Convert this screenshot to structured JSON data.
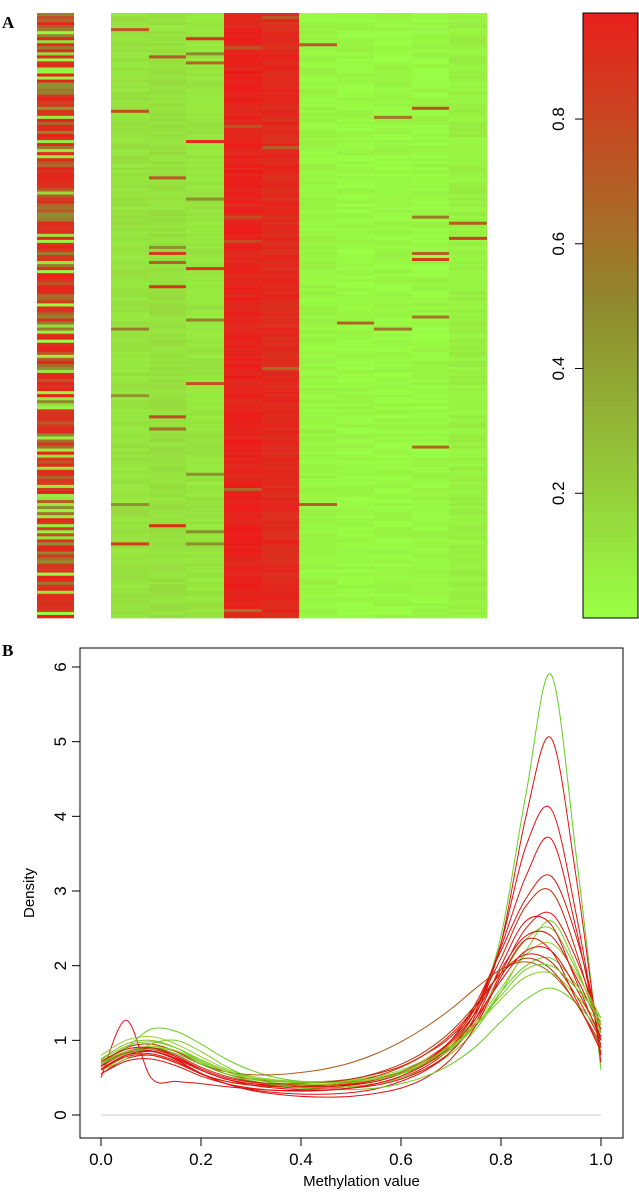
{
  "colors": {
    "low": "#99ff44",
    "mid": "#8f8a2e",
    "high": "#ee1a1a",
    "axis": "#000000",
    "baseline": "#cccccc"
  },
  "chart_data": [
    {
      "panel": "A",
      "type": "heatmap",
      "columns": 11,
      "rows": 200,
      "description_values": "methylation values per probe (rows) and sample (columns)",
      "column_means": [
        0.62,
        0.12,
        0.13,
        0.11,
        0.96,
        0.93,
        0.04,
        0.03,
        0.03,
        0.03,
        0.06
      ],
      "colorbar": {
        "range": [
          0.0,
          0.97
        ],
        "ticks": [
          0.2,
          0.4,
          0.6,
          0.8
        ],
        "tick_labels": [
          "0.2",
          "0.4",
          "0.6",
          "0.8"
        ]
      }
    },
    {
      "panel": "B",
      "type": "line",
      "xlabel": "Methylation value",
      "ylabel": "Density",
      "xlim": [
        0.0,
        1.0
      ],
      "ylim": [
        0,
        6
      ],
      "x_ticks": [
        0.0,
        0.2,
        0.4,
        0.6,
        0.8,
        1.0
      ],
      "x_tick_labels": [
        "0.0",
        "0.2",
        "0.4",
        "0.6",
        "0.8",
        "1.0"
      ],
      "y_ticks": [
        0,
        1,
        2,
        3,
        4,
        5,
        6
      ],
      "y_tick_labels": [
        "0",
        "1",
        "2",
        "3",
        "4",
        "5",
        "6"
      ],
      "x": [
        0.0,
        0.05,
        0.1,
        0.15,
        0.2,
        0.25,
        0.3,
        0.35,
        0.4,
        0.45,
        0.5,
        0.55,
        0.6,
        0.65,
        0.7,
        0.75,
        0.8,
        0.85,
        0.9,
        0.95,
        1.0
      ],
      "series": [
        {
          "color": "#66cc22",
          "values": [
            0.7,
            0.85,
            0.9,
            0.85,
            0.7,
            0.55,
            0.45,
            0.4,
            0.38,
            0.38,
            0.4,
            0.45,
            0.55,
            0.7,
            0.95,
            1.4,
            2.4,
            4.3,
            5.9,
            3.5,
            0.6
          ]
        },
        {
          "color": "#dd1111",
          "values": [
            0.55,
            0.75,
            0.8,
            0.7,
            0.55,
            0.45,
            0.4,
            0.38,
            0.36,
            0.36,
            0.38,
            0.42,
            0.5,
            0.65,
            0.9,
            1.35,
            2.3,
            4.0,
            5.05,
            3.2,
            0.7
          ]
        },
        {
          "color": "#dd1111",
          "values": [
            0.6,
            0.8,
            0.85,
            0.75,
            0.6,
            0.48,
            0.42,
            0.4,
            0.38,
            0.38,
            0.4,
            0.45,
            0.55,
            0.7,
            0.95,
            1.4,
            2.3,
            3.6,
            4.1,
            2.7,
            0.8
          ]
        },
        {
          "color": "#dd1111",
          "values": [
            0.65,
            0.85,
            0.88,
            0.78,
            0.62,
            0.5,
            0.44,
            0.41,
            0.4,
            0.4,
            0.42,
            0.48,
            0.58,
            0.75,
            1.0,
            1.45,
            2.25,
            3.2,
            3.7,
            2.5,
            0.9
          ]
        },
        {
          "color": "#dd1111",
          "values": [
            0.5,
            1.27,
            0.5,
            0.45,
            0.42,
            0.38,
            0.35,
            0.33,
            0.33,
            0.34,
            0.36,
            0.42,
            0.52,
            0.7,
            1.0,
            1.5,
            2.2,
            2.9,
            3.2,
            2.4,
            1.1
          ]
        },
        {
          "color": "#cc2200",
          "values": [
            0.7,
            0.9,
            0.95,
            0.85,
            0.68,
            0.55,
            0.48,
            0.45,
            0.44,
            0.45,
            0.48,
            0.55,
            0.65,
            0.82,
            1.05,
            1.45,
            2.1,
            2.8,
            3.0,
            2.2,
            1.0
          ]
        },
        {
          "color": "#77cc22",
          "values": [
            0.6,
            0.75,
            0.95,
            1.0,
            0.85,
            0.65,
            0.5,
            0.42,
            0.38,
            0.37,
            0.38,
            0.42,
            0.5,
            0.62,
            0.82,
            1.15,
            1.65,
            2.2,
            2.6,
            2.0,
            1.1
          ]
        },
        {
          "color": "#dd1111",
          "values": [
            0.7,
            0.88,
            0.9,
            0.78,
            0.6,
            0.48,
            0.4,
            0.36,
            0.34,
            0.34,
            0.36,
            0.4,
            0.48,
            0.62,
            0.85,
            1.25,
            1.9,
            2.5,
            2.7,
            2.1,
            1.2
          ]
        },
        {
          "color": "#88bb22",
          "values": [
            0.75,
            0.95,
            1.0,
            0.9,
            0.72,
            0.58,
            0.5,
            0.46,
            0.44,
            0.44,
            0.46,
            0.5,
            0.58,
            0.72,
            0.95,
            1.3,
            1.85,
            2.35,
            2.5,
            1.95,
            1.2
          ]
        },
        {
          "color": "#dd1111",
          "values": [
            0.62,
            0.8,
            0.82,
            0.72,
            0.55,
            0.42,
            0.34,
            0.3,
            0.28,
            0.28,
            0.3,
            0.35,
            0.45,
            0.6,
            0.85,
            1.3,
            2.0,
            2.6,
            2.55,
            1.8,
            1.0
          ]
        },
        {
          "color": "#99cc33",
          "values": [
            0.8,
            1.0,
            1.05,
            0.95,
            0.78,
            0.62,
            0.52,
            0.47,
            0.45,
            0.45,
            0.47,
            0.52,
            0.6,
            0.75,
            0.95,
            1.25,
            1.7,
            2.15,
            2.3,
            1.9,
            1.3
          ]
        },
        {
          "color": "#dd1111",
          "values": [
            0.66,
            0.82,
            0.86,
            0.76,
            0.6,
            0.48,
            0.42,
            0.39,
            0.38,
            0.38,
            0.41,
            0.47,
            0.57,
            0.73,
            0.98,
            1.38,
            1.95,
            2.4,
            2.4,
            1.85,
            1.15
          ]
        },
        {
          "color": "#66cc22",
          "values": [
            0.72,
            0.9,
            1.15,
            1.12,
            0.95,
            0.75,
            0.6,
            0.5,
            0.45,
            0.43,
            0.44,
            0.48,
            0.55,
            0.68,
            0.88,
            1.2,
            1.65,
            2.0,
            2.1,
            1.75,
            1.25
          ]
        },
        {
          "color": "#aa5511",
          "values": [
            0.68,
            0.85,
            0.9,
            0.82,
            0.68,
            0.58,
            0.54,
            0.54,
            0.57,
            0.62,
            0.7,
            0.82,
            0.98,
            1.18,
            1.42,
            1.7,
            1.95,
            2.05,
            1.9,
            1.5,
            0.9
          ]
        },
        {
          "color": "#dd2200",
          "values": [
            0.6,
            0.78,
            0.8,
            0.7,
            0.55,
            0.45,
            0.4,
            0.38,
            0.38,
            0.4,
            0.44,
            0.52,
            0.64,
            0.82,
            1.08,
            1.45,
            1.9,
            2.15,
            2.05,
            1.6,
            1.0
          ]
        },
        {
          "color": "#88cc22",
          "values": [
            0.7,
            0.85,
            0.92,
            0.86,
            0.72,
            0.58,
            0.48,
            0.43,
            0.41,
            0.41,
            0.43,
            0.48,
            0.56,
            0.7,
            0.9,
            1.2,
            1.55,
            1.85,
            1.9,
            1.6,
            1.2
          ]
        },
        {
          "color": "#dd1111",
          "values": [
            0.65,
            0.83,
            0.86,
            0.74,
            0.56,
            0.42,
            0.33,
            0.28,
            0.25,
            0.24,
            0.25,
            0.29,
            0.36,
            0.5,
            0.75,
            1.2,
            1.85,
            2.35,
            2.2,
            1.55,
            0.85
          ]
        },
        {
          "color": "#66cc22",
          "values": [
            0.68,
            0.82,
            0.88,
            0.82,
            0.68,
            0.55,
            0.46,
            0.4,
            0.36,
            0.34,
            0.34,
            0.36,
            0.42,
            0.52,
            0.68,
            0.92,
            1.25,
            1.55,
            1.7,
            1.5,
            1.1
          ]
        },
        {
          "color": "#bb3311",
          "values": [
            0.72,
            0.88,
            0.9,
            0.8,
            0.64,
            0.52,
            0.45,
            0.42,
            0.42,
            0.44,
            0.48,
            0.56,
            0.68,
            0.86,
            1.12,
            1.48,
            1.9,
            2.1,
            1.95,
            1.5,
            0.95
          ]
        },
        {
          "color": "#dd1111",
          "values": [
            0.55,
            0.72,
            0.75,
            0.66,
            0.52,
            0.42,
            0.36,
            0.33,
            0.32,
            0.33,
            0.36,
            0.42,
            0.52,
            0.68,
            0.92,
            1.3,
            1.8,
            2.2,
            2.2,
            1.7,
            1.05
          ]
        },
        {
          "color": "#77cc22",
          "values": [
            0.74,
            0.92,
            0.98,
            0.9,
            0.74,
            0.6,
            0.5,
            0.45,
            0.43,
            0.43,
            0.45,
            0.5,
            0.58,
            0.72,
            0.92,
            1.22,
            1.6,
            1.95,
            2.0,
            1.7,
            1.3
          ]
        }
      ]
    }
  ]
}
